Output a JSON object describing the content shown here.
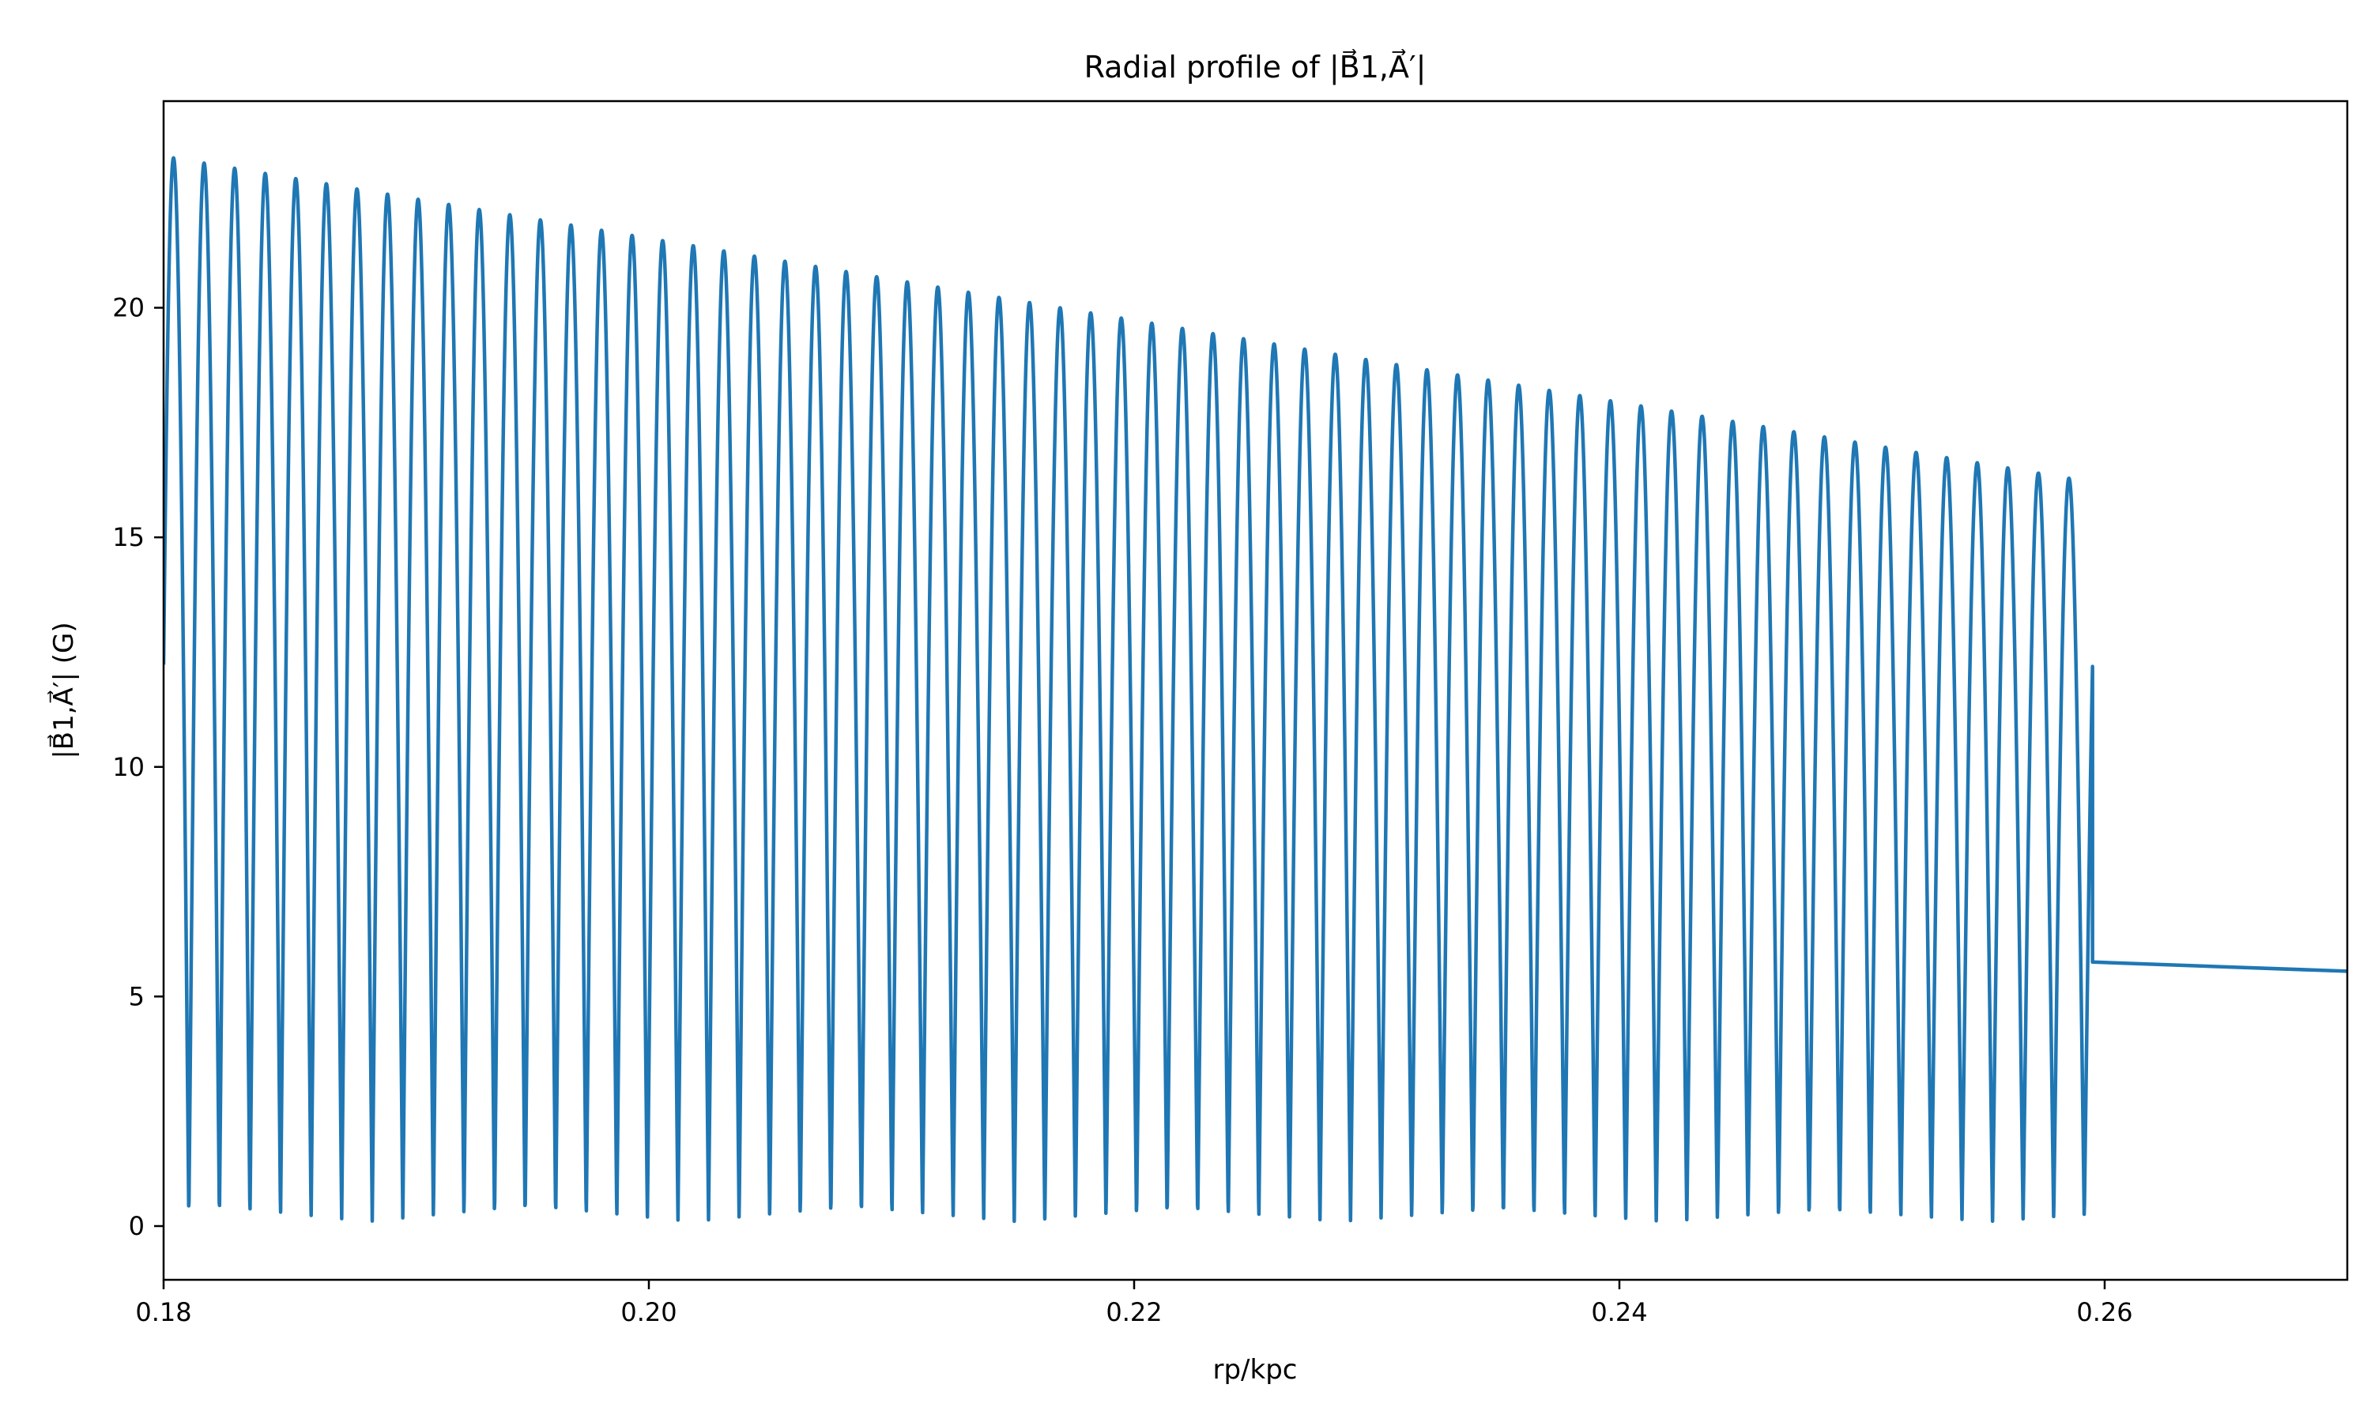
{
  "chart_data": {
    "type": "line",
    "title": "Radial profile of |B⃗1,A⃗′|",
    "xlabel": "rp/kpc",
    "ylabel": "|B⃗1,A⃗′| (G)",
    "xlim": [
      0.18,
      0.27
    ],
    "ylim": [
      -1.17,
      24.5
    ],
    "x_ticks": [
      {
        "value": 0.18,
        "label": "0.18"
      },
      {
        "value": 0.2,
        "label": "0.20"
      },
      {
        "value": 0.22,
        "label": "0.22"
      },
      {
        "value": 0.24,
        "label": "0.24"
      },
      {
        "value": 0.26,
        "label": "0.26"
      }
    ],
    "y_ticks": [
      {
        "value": 0,
        "label": "0"
      },
      {
        "value": 5,
        "label": "5"
      },
      {
        "value": 10,
        "label": "10"
      },
      {
        "value": 15,
        "label": "15"
      },
      {
        "value": 20,
        "label": "20"
      }
    ],
    "grid": false,
    "legend": "none",
    "series": [
      {
        "color": "#1f77b4",
        "oscillation": {
          "x_start": 0.18,
          "x_end": 0.2595,
          "period": 0.00126,
          "peak_start": 23.3,
          "peak_end": 16.2,
          "trough": 0.1
        },
        "tail": [
          {
            "x": 0.2595,
            "y": 5.75
          },
          {
            "x": 0.27,
            "y": 5.55
          }
        ]
      }
    ]
  }
}
